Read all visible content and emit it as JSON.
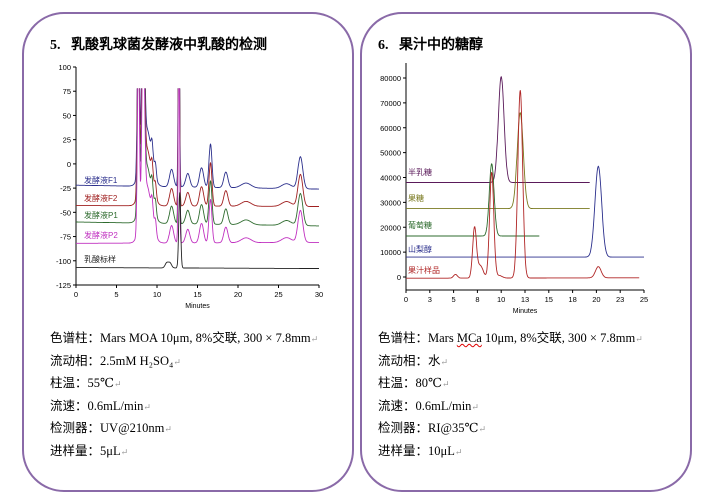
{
  "left": {
    "title": "5.   乳酸乳球菌发酵液中乳酸的检测",
    "specs": [
      {
        "label": "色谱柱：",
        "value": "Mars MOA 10μm, 8%交联, 300 × 7.8mm"
      },
      {
        "label": "流动相：",
        "value": "2.5mM H₂SO₄"
      },
      {
        "label": "柱温：",
        "value": "55℃"
      },
      {
        "label": "流速：",
        "value": "0.6mL/min"
      },
      {
        "label": "检测器：",
        "value": "UV@210nm"
      },
      {
        "label": "进样量：",
        "value": "5μL"
      }
    ]
  },
  "right": {
    "title": "6.   果汁中的糖醇",
    "specs": [
      {
        "label": "色谱柱：",
        "value_pre": "Mars ",
        "value_err": "MCa",
        "value_post": " 10μm, 8%交联, 300 × 7.8mm"
      },
      {
        "label": "流动相：",
        "value": "水"
      },
      {
        "label": "柱温：",
        "value": "80℃"
      },
      {
        "label": "流速：",
        "value": "0.6mL/min"
      },
      {
        "label": "检测器：",
        "value": "RI@35℃"
      },
      {
        "label": "进样量：",
        "value": "10μL"
      }
    ]
  },
  "chart_data": [
    {
      "type": "line",
      "xlabel": "Minutes",
      "xlim": [
        0,
        30
      ],
      "ylim": [
        -125,
        100
      ],
      "xticks": [
        0,
        5,
        10,
        15,
        20,
        25,
        30
      ],
      "yticks": [
        100,
        75,
        50,
        25,
        0,
        -25,
        -50,
        -75,
        -100,
        -125
      ],
      "grid": false,
      "series": [
        {
          "name": "发酵液F1",
          "color": "#2b2f8c",
          "baseline": [
            -22,
            -26
          ],
          "end": 30,
          "peaks": [
            [
              7.7,
              200,
              0.12
            ],
            [
              8.3,
              200,
              0.15
            ],
            [
              8.7,
              60,
              0.6
            ],
            [
              9.4,
              18,
              0.12
            ],
            [
              9.8,
              14,
              0.12
            ],
            [
              11.8,
              18,
              0.25
            ],
            [
              12.7,
              250,
              0.08
            ],
            [
              13.8,
              14,
              0.25
            ],
            [
              15.5,
              20,
              0.25
            ],
            [
              16.6,
              45,
              0.18
            ],
            [
              18.5,
              16,
              0.25
            ],
            [
              21,
              5,
              0.6
            ],
            [
              26,
              5,
              0.6
            ],
            [
              27.7,
              33,
              0.3
            ]
          ]
        },
        {
          "name": "发酵液F2",
          "color": "#a02020",
          "baseline": [
            -43,
            -44
          ],
          "end": 30,
          "peaks": [
            [
              7.7,
              200,
              0.12
            ],
            [
              8.3,
              200,
              0.15
            ],
            [
              8.7,
              60,
              0.6
            ],
            [
              9.4,
              18,
              0.12
            ],
            [
              9.8,
              14,
              0.12
            ],
            [
              11.8,
              18,
              0.25
            ],
            [
              12.7,
              250,
              0.08
            ],
            [
              13.8,
              14,
              0.25
            ],
            [
              15.5,
              20,
              0.25
            ],
            [
              16.6,
              45,
              0.18
            ],
            [
              18.5,
              16,
              0.25
            ],
            [
              21,
              5,
              0.6
            ],
            [
              26,
              5,
              0.6
            ],
            [
              27.7,
              33,
              0.3
            ]
          ]
        },
        {
          "name": "发酵液P1",
          "color": "#2e6b2e",
          "baseline": [
            -60,
            -64
          ],
          "end": 30,
          "peaks": [
            [
              7.7,
              200,
              0.12
            ],
            [
              8.3,
              200,
              0.15
            ],
            [
              8.7,
              60,
              0.6
            ],
            [
              9.4,
              18,
              0.12
            ],
            [
              9.8,
              14,
              0.12
            ],
            [
              11.8,
              18,
              0.25
            ],
            [
              12.7,
              250,
              0.08
            ],
            [
              13.8,
              14,
              0.25
            ],
            [
              15.5,
              20,
              0.25
            ],
            [
              16.6,
              45,
              0.18
            ],
            [
              18.5,
              16,
              0.25
            ],
            [
              21,
              5,
              0.6
            ],
            [
              26,
              5,
              0.6
            ],
            [
              27.7,
              33,
              0.3
            ]
          ]
        },
        {
          "name": "发酵液P2",
          "color": "#c030c0",
          "baseline": [
            -82,
            -81
          ],
          "end": 30,
          "peaks": [
            [
              7.7,
              200,
              0.12
            ],
            [
              8.3,
              200,
              0.15
            ],
            [
              8.7,
              60,
              0.6
            ],
            [
              9.4,
              18,
              0.12
            ],
            [
              9.8,
              14,
              0.12
            ],
            [
              11.8,
              18,
              0.25
            ],
            [
              12.7,
              250,
              0.08
            ],
            [
              13.8,
              14,
              0.25
            ],
            [
              15.5,
              20,
              0.25
            ],
            [
              16.6,
              45,
              0.18
            ],
            [
              18.5,
              16,
              0.25
            ],
            [
              21,
              5,
              0.6
            ],
            [
              26,
              5,
              0.6
            ],
            [
              27.7,
              33,
              0.3
            ]
          ]
        },
        {
          "name": "乳酸标样",
          "color": "#222222",
          "baseline": [
            -107,
            -108
          ],
          "end": 30,
          "peaks": [
            [
              11.2,
              5,
              0.2
            ],
            [
              11.6,
              5,
              0.2
            ],
            [
              12.8,
              78,
              0.12
            ]
          ]
        }
      ]
    },
    {
      "type": "line",
      "xlabel": "Minutes",
      "xlim": [
        0,
        25
      ],
      "ylim": [
        -2000,
        85000
      ],
      "xticks": [
        0,
        2.5,
        5,
        7.5,
        10,
        12.5,
        15,
        17.5,
        20,
        22.5,
        25
      ],
      "xtick_labels": [
        "0",
        "3",
        "5",
        "8",
        "10",
        "13",
        "15",
        "18",
        "20",
        "23",
        "25"
      ],
      "yticks": [
        0,
        10000,
        20000,
        30000,
        40000,
        50000,
        60000,
        70000,
        80000
      ],
      "grid": false,
      "series": [
        {
          "name": "半乳糖",
          "color": "#5a1a5a",
          "baseline": [
            38000,
            38000
          ],
          "end": 19.3,
          "peaks": [
            [
              10,
              42500,
              0.3
            ]
          ]
        },
        {
          "name": "果糖",
          "color": "#7a7a20",
          "baseline": [
            27500,
            27500
          ],
          "end": 19.3,
          "peaks": [
            [
              12,
              38500,
              0.32
            ]
          ]
        },
        {
          "name": "葡萄糖",
          "color": "#2e6b2e",
          "baseline": [
            16500,
            16500
          ],
          "end": 14,
          "peaks": [
            [
              9,
              29000,
              0.25
            ]
          ]
        },
        {
          "name": "山梨醇",
          "color": "#2b2f8c",
          "baseline": [
            8000,
            8000
          ],
          "end": 25,
          "peaks": [
            [
              20.2,
              36500,
              0.35
            ]
          ]
        },
        {
          "name": "果汁样品",
          "color": "#b02525",
          "baseline": [
            -500,
            -300
          ],
          "end": 24.5,
          "peaks": [
            [
              5.2,
              1500,
              0.2
            ],
            [
              7.2,
              20000,
              0.2
            ],
            [
              7.8,
              5000,
              0.3
            ],
            [
              9,
              42500,
              0.22
            ],
            [
              9.8,
              1000,
              0.3
            ],
            [
              12,
              75500,
              0.25
            ],
            [
              20.2,
              4500,
              0.3
            ]
          ]
        }
      ]
    }
  ]
}
